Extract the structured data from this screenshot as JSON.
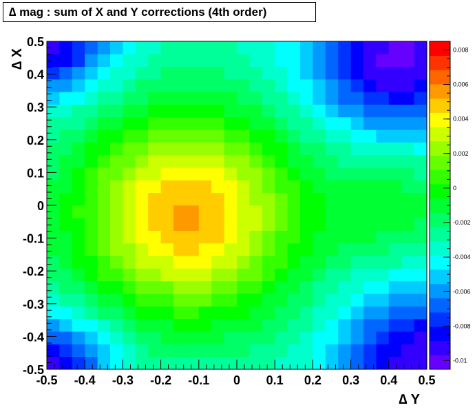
{
  "chart_data": {
    "type": "heatmap",
    "title": "∆ mag  :  sum of X and Y corrections (4th order)",
    "xlabel": "∆ Y",
    "ylabel": "∆ X",
    "xlim": [
      -0.5,
      0.5
    ],
    "ylim": [
      -0.5,
      0.5
    ],
    "zlim": [
      -0.0105,
      0.0085
    ],
    "nx": 30,
    "ny": 26,
    "x_ticks": [
      "-0.5",
      "-0.4",
      "-0.3",
      "-0.2",
      "-0.1",
      "0",
      "0.1",
      "0.2",
      "0.3",
      "0.4",
      "0.5"
    ],
    "y_ticks": [
      "-0.5",
      "-0.4",
      "-0.3",
      "-0.2",
      "-0.1",
      "0",
      "0.1",
      "0.2",
      "0.3",
      "0.4",
      "0.5"
    ],
    "z_ticks": [
      "0.008",
      "0.006",
      "0.004",
      "0.002",
      "0",
      "-0.002",
      "-0.004",
      "-0.006",
      "-0.008",
      "-0.01"
    ],
    "palette": [
      "#6600ff",
      "#3300ff",
      "#0000ff",
      "#0033ff",
      "#0066ff",
      "#0099ff",
      "#00ccff",
      "#00ffff",
      "#00ffcc",
      "#00ff99",
      "#00ff66",
      "#00ff33",
      "#00ff00",
      "#33ff00",
      "#66ff00",
      "#99ff00",
      "#ccff00",
      "#ffff00",
      "#ffcc00",
      "#ff9900",
      "#ff6600",
      "#ff3300",
      "#ff0000"
    ],
    "model": {
      "peak": {
        "x": -0.13,
        "y": -0.03,
        "amplitude": 0.0088,
        "sx": 0.22,
        "sy": 0.23
      },
      "baseline": -0.0035,
      "corner_holes": [
        {
          "x": 0.42,
          "y": 0.45,
          "amplitude": -0.0065,
          "s": 0.16
        },
        {
          "x": 0.48,
          "y": -0.47,
          "amplitude": -0.006,
          "s": 0.15
        },
        {
          "x": -0.5,
          "y": -0.5,
          "amplitude": -0.006,
          "s": 0.12
        },
        {
          "x": -0.5,
          "y": 0.5,
          "amplitude": -0.006,
          "s": 0.12
        }
      ],
      "right_bump": {
        "x": 0.42,
        "y": 0.0,
        "amplitude": 0.0025,
        "s": 0.12
      }
    }
  }
}
